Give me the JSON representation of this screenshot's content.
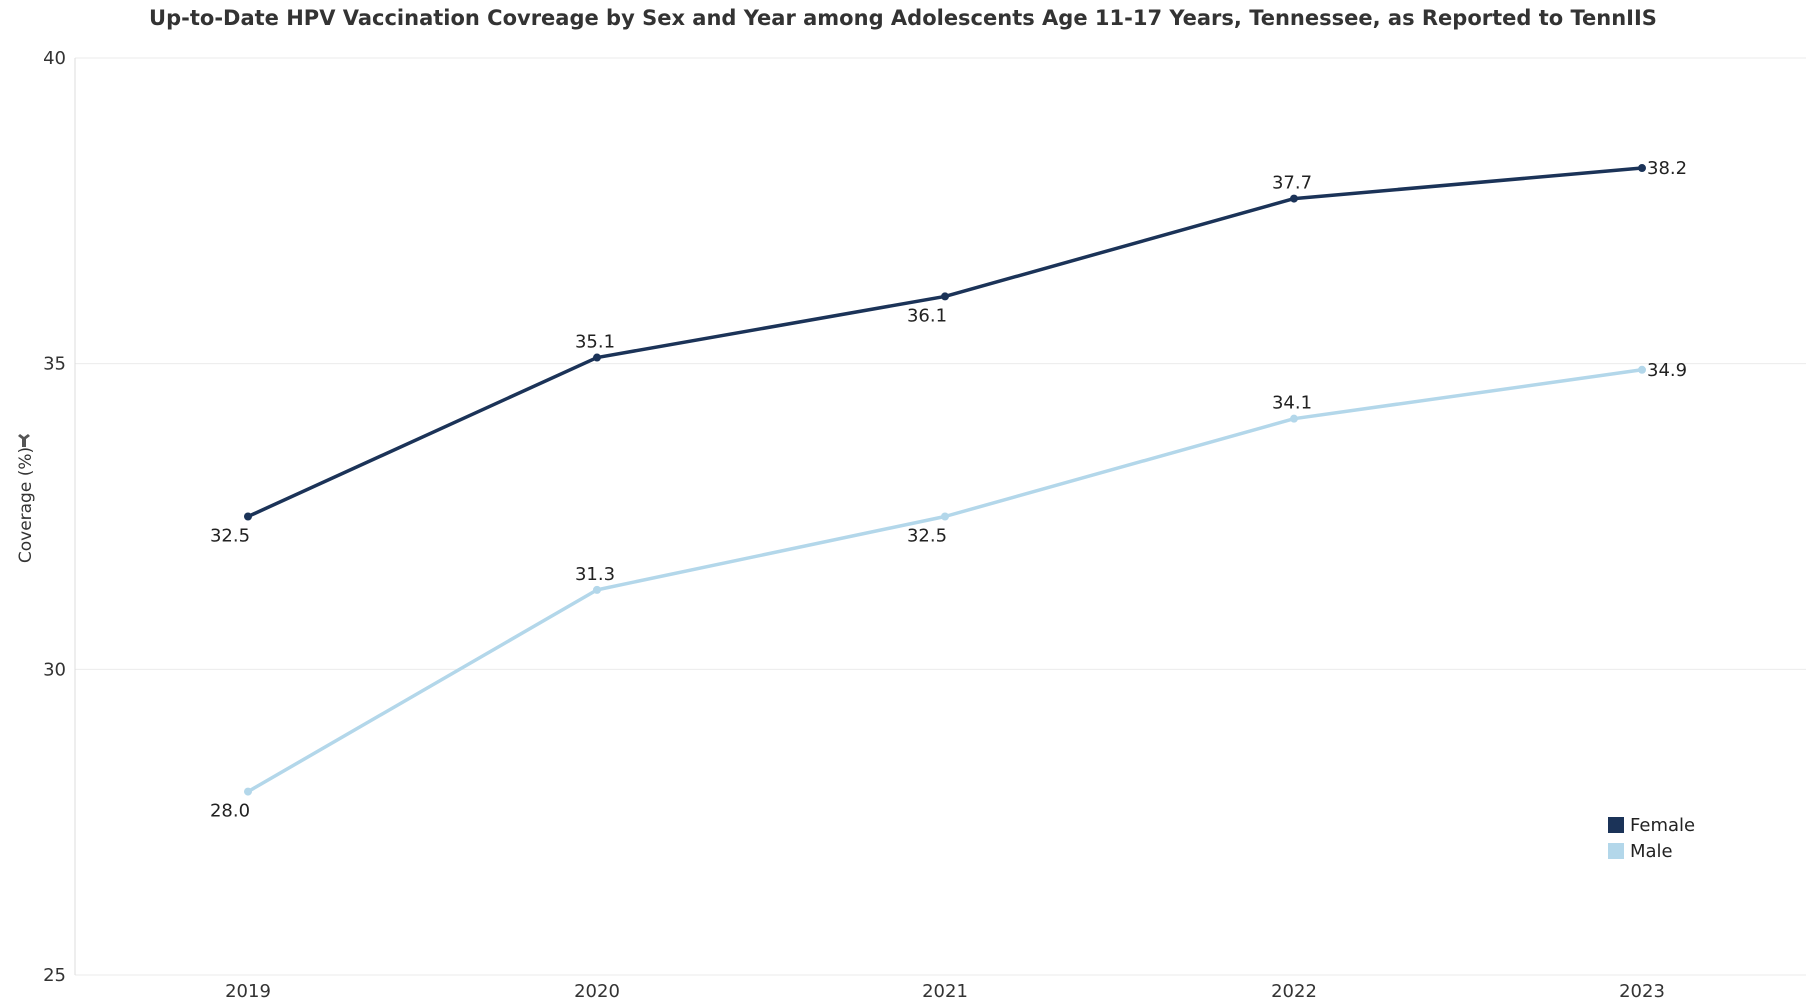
{
  "chart_data": {
    "type": "line",
    "title": "Up-to-Date HPV Vaccination Covreage by Sex and Year among Adolescents Age 11-17 Years, Tennessee, as Reported to TennIIS",
    "xlabel": "",
    "ylabel": "Coverage (%)",
    "x": [
      "2019",
      "2020",
      "2021",
      "2022",
      "2023"
    ],
    "ylim": [
      25,
      40
    ],
    "yticks": [
      25,
      30,
      35,
      40
    ],
    "grid": true,
    "legend_position": "bottom-right",
    "series": [
      {
        "name": "Female",
        "color": "#1b3358",
        "values": [
          32.5,
          35.1,
          36.1,
          37.7,
          38.2
        ],
        "labels": [
          "32.5",
          "35.1",
          "36.1",
          "37.7",
          "38.2"
        ]
      },
      {
        "name": "Male",
        "color": "#b3d7ea",
        "values": [
          28.0,
          31.3,
          32.5,
          34.1,
          34.9
        ],
        "labels": [
          "28.0",
          "31.3",
          "32.5",
          "34.1",
          "34.9"
        ]
      }
    ]
  }
}
